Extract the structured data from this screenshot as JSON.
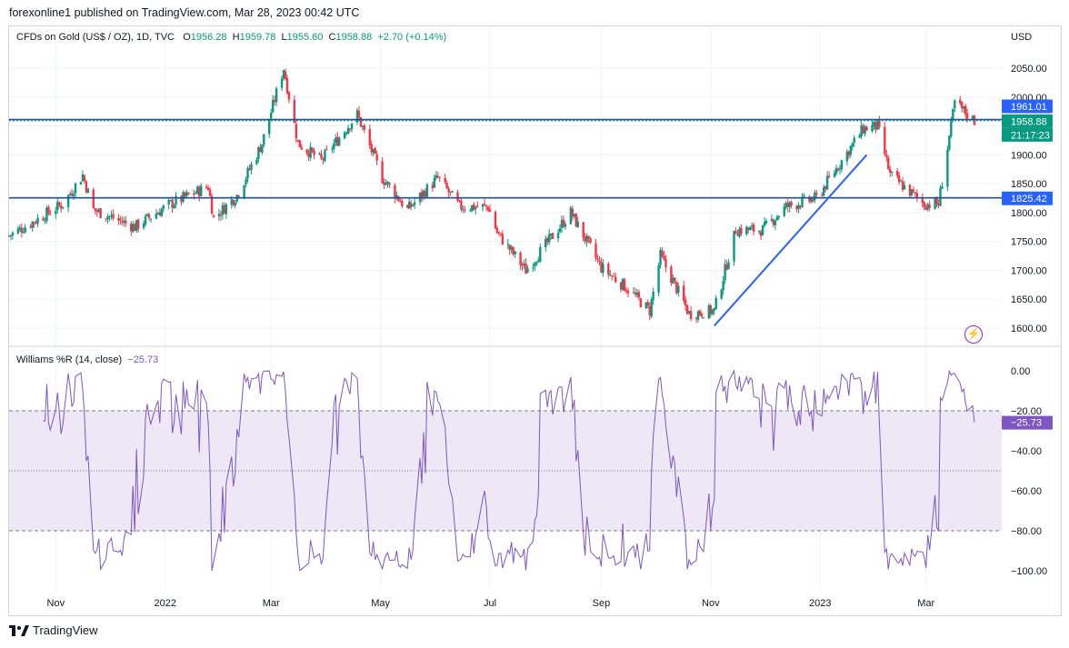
{
  "header": {
    "text": "forexonline1 published on TradingView.com, Mar 28, 2023 00:42 UTC"
  },
  "legend": {
    "symbol": "CFDs on Gold (US$ / OZ), 1D, TVC",
    "o_label": "O",
    "o": "1956.28",
    "h_label": "H",
    "h": "1959.78",
    "l_label": "L",
    "l": "1955.60",
    "c_label": "C",
    "c": "1958.88",
    "change": "+2.70 (+0.14%)"
  },
  "currency": "USD",
  "indicator": {
    "name": "Williams %R (14, close)",
    "value": "−25.73"
  },
  "price_axis": {
    "ticks": [
      "2050.00",
      "2000.00",
      "1950.00",
      "1900.00",
      "1850.00",
      "1800.00",
      "1750.00",
      "1700.00",
      "1650.00",
      "1600.00"
    ],
    "tick_values": [
      2050,
      2000,
      1950,
      1900,
      1850,
      1800,
      1750,
      1700,
      1650,
      1600
    ],
    "labels": {
      "upper_line": "1961.01",
      "last_price": "1958.88",
      "countdown": "21:17:23",
      "lower_line": "1825.42"
    }
  },
  "wr_axis": {
    "ticks": [
      "0.00",
      "−20.00",
      "−40.00",
      "−60.00",
      "−80.00",
      "−100.00"
    ],
    "tick_values": [
      0,
      -20,
      -40,
      -60,
      -80,
      -100
    ],
    "current": "−25.73"
  },
  "time_axis": [
    "Nov",
    "2022",
    "Mar",
    "May",
    "Jul",
    "Sep",
    "Nov",
    "2023",
    "Mar"
  ],
  "colors": {
    "up": "#089981",
    "down": "#f23645",
    "line": "#2962ff",
    "trend": "#2962ff",
    "wr": "#7e57c2",
    "band": "#ede7f6"
  },
  "footer": {
    "brand": "TradingView"
  },
  "chart_data": [
    {
      "type": "candlestick",
      "title": "CFDs on Gold (US$ / OZ), 1D, TVC",
      "x_range": [
        "2021-10-06",
        "2023-03-28"
      ],
      "ylim": [
        1575,
        2085
      ],
      "horizontal_lines": [
        1961.01,
        1825.42
      ],
      "trendline": {
        "from": [
          "2022-11-03",
          1604
        ],
        "to": [
          "2023-01-27",
          1900
        ]
      },
      "path": [
        [
          "2021-10-06",
          1760
        ],
        [
          "2021-10-20",
          1785
        ],
        [
          "2021-11-05",
          1815
        ],
        [
          "2021-11-16",
          1865
        ],
        [
          "2021-11-22",
          1805
        ],
        [
          "2021-12-15",
          1775
        ],
        [
          "2022-01-04",
          1815
        ],
        [
          "2022-01-25",
          1845
        ],
        [
          "2022-01-28",
          1790
        ],
        [
          "2022-02-10",
          1830
        ],
        [
          "2022-02-24",
          1920
        ],
        [
          "2022-03-08",
          2050
        ],
        [
          "2022-03-16",
          1920
        ],
        [
          "2022-03-29",
          1890
        ],
        [
          "2022-04-18",
          1970
        ],
        [
          "2022-05-02",
          1860
        ],
        [
          "2022-05-16",
          1805
        ],
        [
          "2022-06-02",
          1860
        ],
        [
          "2022-06-14",
          1810
        ],
        [
          "2022-06-30",
          1810
        ],
        [
          "2022-07-05",
          1765
        ],
        [
          "2022-07-21",
          1700
        ],
        [
          "2022-08-15",
          1800
        ],
        [
          "2022-09-01",
          1705
        ],
        [
          "2022-09-15",
          1670
        ],
        [
          "2022-09-28",
          1630
        ],
        [
          "2022-10-04",
          1725
        ],
        [
          "2022-10-20",
          1625
        ],
        [
          "2022-11-03",
          1630
        ],
        [
          "2022-11-15",
          1770
        ],
        [
          "2022-11-30",
          1770
        ],
        [
          "2022-12-13",
          1810
        ],
        [
          "2022-12-30",
          1825
        ],
        [
          "2023-01-25",
          1945
        ],
        [
          "2023-02-02",
          1950
        ],
        [
          "2023-02-09",
          1865
        ],
        [
          "2023-02-28",
          1815
        ],
        [
          "2023-03-08",
          1815
        ],
        [
          "2023-03-17",
          1990
        ],
        [
          "2023-03-28",
          1958.88
        ]
      ]
    },
    {
      "type": "line",
      "title": "Williams %R (14, close)",
      "ylim": [
        -100,
        0
      ],
      "levels": [
        -20,
        -50,
        -80
      ],
      "last": -25.73
    }
  ]
}
